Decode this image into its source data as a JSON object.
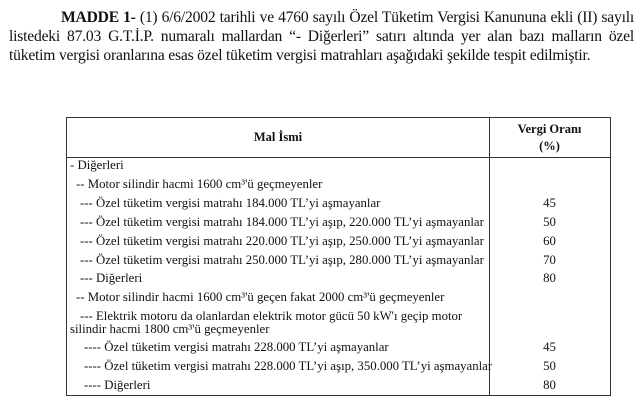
{
  "paragraph": {
    "heading": "MADDE 1-",
    "text": " (1) 6/6/2002 tarihli ve 4760 sayılı Özel Tüketim Vergisi Kanununa ekli (II) sayılı listedeki 87.03 G.T.İ.P. numaralı mallardan “- Diğerleri” satırı altında yer alan bazı malların özel tüketim vergisi oranlarına esas özel tüketim vergisi matrahları aşağıdaki şekilde tespit edilmiştir."
  },
  "table": {
    "headers": [
      "Mal İsmi",
      "Vergi Oranı",
      "(%)"
    ],
    "rows": [
      {
        "name": "- Diğerleri",
        "rate": ""
      },
      {
        "name": "-- Motor silindir hacmi 1600 cm³'ü geçmeyenler",
        "rate": ""
      },
      {
        "name": "--- Özel tüketim vergisi matrahı 184.000 TL’yi aşmayanlar",
        "rate": "45"
      },
      {
        "name": "--- Özel tüketim vergisi matrahı 184.000 TL’yi aşıp, 220.000 TL’yi aşmayanlar",
        "rate": "50"
      },
      {
        "name": "--- Özel tüketim vergisi matrahı 220.000 TL’yi aşıp, 250.000 TL’yi aşmayanlar",
        "rate": "60"
      },
      {
        "name": "--- Özel tüketim vergisi matrahı 250.000 TL’yi aşıp, 280.000 TL’yi aşmayanlar",
        "rate": "70"
      },
      {
        "name": "--- Diğerleri",
        "rate": "80"
      },
      {
        "name": "-- Motor silindir hacmi 1600 cm³'ü geçen fakat 2000 cm³'ü geçmeyenler",
        "rate": ""
      },
      {
        "name": "--- Elektrik motoru da olanlardan elektrik motor gücü 50 kW'ı geçip motor silindir hacmi 1800 cm³'ü geçmeyenler",
        "rate": ""
      },
      {
        "name": "---- Özel tüketim vergisi matrahı 228.000 TL’yi aşmayanlar",
        "rate": "45"
      },
      {
        "name": "---- Özel tüketim vergisi matrahı 228.000 TL’yi aşıp, 350.000 TL’yi aşmayanlar",
        "rate": "50"
      },
      {
        "name": "---- Diğerleri",
        "rate": "80"
      }
    ]
  }
}
